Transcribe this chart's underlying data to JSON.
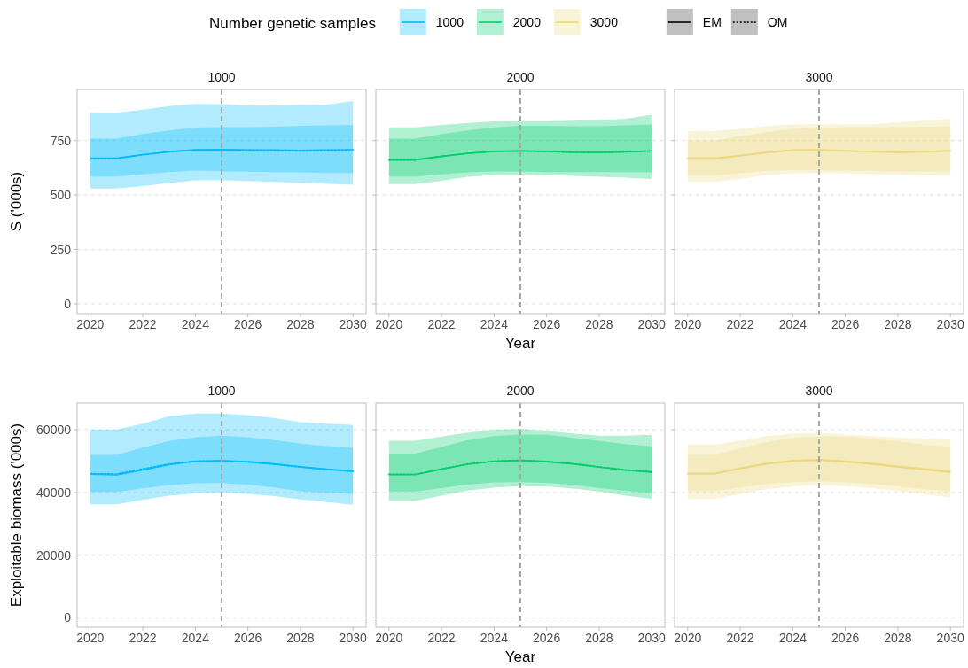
{
  "chart_data": [
    {
      "type": "line",
      "title": "1000",
      "ylabel": "S ('000s)",
      "legend_title": "Number genetic samples",
      "legend": "top",
      "grid": "y",
      "x": [
        2020,
        2021,
        2022,
        2023,
        2024,
        2025,
        2026,
        2027,
        2028,
        2029,
        2030
      ],
      "xlim": [
        2019.5,
        2030.5
      ],
      "xticks": [
        2020,
        2022,
        2024,
        2026,
        2028,
        2030
      ],
      "ylim": [
        -45,
        985
      ],
      "yticks": [
        0,
        250,
        500,
        750
      ],
      "ref_lines": [
        {
          "axis": "x",
          "value": 2025,
          "color": "#a6a6a6",
          "line_style": "dashed"
        }
      ],
      "series": [
        {
          "name": "EM",
          "color": "#00bcfc",
          "line_style": "solid",
          "values": [
            669,
            669,
            686,
            699,
            708,
            709,
            707,
            707,
            705,
            707,
            708
          ],
          "lower": [
            585,
            585,
            595,
            605,
            612,
            609,
            607,
            605,
            604,
            601,
            601
          ],
          "upper": [
            759,
            759,
            780,
            797,
            810,
            812,
            812,
            814,
            818,
            820,
            822
          ]
        },
        {
          "name": "OM",
          "color": "#00bcfc",
          "line_style": "dotted",
          "values": [
            667,
            667,
            685,
            698,
            707,
            708,
            706,
            705,
            702,
            704,
            706
          ],
          "lower": [
            530,
            530,
            541,
            554,
            568,
            568,
            565,
            561,
            557,
            551,
            547
          ],
          "upper": [
            878,
            878,
            892,
            909,
            919,
            918,
            912,
            912,
            915,
            916,
            932
          ]
        }
      ]
    },
    {
      "type": "line",
      "title": "2000",
      "xlabel": "Year",
      "grid": "y",
      "tick_labels": "x",
      "x": [
        2020,
        2021,
        2022,
        2023,
        2024,
        2025,
        2026,
        2027,
        2028,
        2029,
        2030
      ],
      "xlim": [
        2019.5,
        2030.5
      ],
      "xticks": [
        2020,
        2022,
        2024,
        2026,
        2028,
        2030
      ],
      "ylim": [
        -45,
        985
      ],
      "yticks": [
        0,
        250,
        500,
        750
      ],
      "ref_lines": [
        {
          "axis": "x",
          "value": 2025,
          "color": "#a6a6a6",
          "line_style": "dashed"
        }
      ],
      "series": [
        {
          "color": "#00cd6c",
          "line_style": "solid",
          "values": [
            662,
            662,
            678,
            692,
            701,
            703,
            701,
            697,
            696,
            699,
            703
          ],
          "lower": [
            585,
            585,
            595,
            604,
            608,
            608,
            605,
            605,
            605,
            605,
            605
          ],
          "upper": [
            759,
            759,
            780,
            797,
            811,
            818,
            818,
            816,
            816,
            820,
            824
          ]
        },
        {
          "color": "#00cd6c",
          "line_style": "dotted",
          "values": [
            661,
            661,
            677,
            691,
            700,
            702,
            700,
            696,
            695,
            698,
            702
          ],
          "lower": [
            550,
            550,
            566,
            584,
            592,
            595,
            592,
            588,
            584,
            580,
            574
          ],
          "upper": [
            811,
            811,
            822,
            831,
            838,
            839,
            839,
            841,
            845,
            851,
            869
          ]
        }
      ]
    },
    {
      "type": "line",
      "title": "3000",
      "grid": "y",
      "tick_labels": "x",
      "x": [
        2020,
        2021,
        2022,
        2023,
        2024,
        2025,
        2026,
        2027,
        2028,
        2029,
        2030
      ],
      "xlim": [
        2019.5,
        2030.5
      ],
      "xticks": [
        2020,
        2022,
        2024,
        2026,
        2028,
        2030
      ],
      "ylim": [
        -45,
        985
      ],
      "yticks": [
        0,
        250,
        500,
        750
      ],
      "ref_lines": [
        {
          "axis": "x",
          "value": 2025,
          "color": "#a6a6a6",
          "line_style": "dashed"
        }
      ],
      "series": [
        {
          "color": "#ebd77d",
          "line_style": "solid",
          "values": [
            669,
            669,
            682,
            696,
            707,
            708,
            704,
            700,
            697,
            700,
            704
          ],
          "lower": [
            591,
            591,
            601,
            611,
            615,
            614,
            612,
            611,
            609,
            608,
            608
          ],
          "upper": [
            750,
            750,
            770,
            790,
            804,
            810,
            811,
            811,
            812,
            814,
            815
          ]
        },
        {
          "color": "#ebd77d",
          "line_style": "dotted",
          "values": [
            666,
            666,
            680,
            694,
            705,
            706,
            702,
            698,
            695,
            698,
            702
          ],
          "lower": [
            561,
            561,
            574,
            592,
            599,
            601,
            599,
            596,
            593,
            591,
            588
          ],
          "upper": [
            795,
            795,
            804,
            818,
            824,
            826,
            824,
            824,
            834,
            842,
            851
          ]
        }
      ]
    },
    {
      "type": "line",
      "title": "1000",
      "ylabel": "Exploitable biomass ('000s)",
      "grid": "y",
      "x": [
        2020,
        2021,
        2022,
        2023,
        2024,
        2025,
        2026,
        2027,
        2028,
        2029,
        2030
      ],
      "xlim": [
        2019.5,
        2030.5
      ],
      "xticks": [
        2020,
        2022,
        2024,
        2026,
        2028,
        2030
      ],
      "ylim": [
        -3000,
        68500
      ],
      "yticks": [
        0,
        20000,
        40000,
        60000
      ],
      "ref_lines": [
        {
          "axis": "x",
          "value": 2025,
          "color": "#a6a6a6",
          "line_style": "dashed"
        }
      ],
      "series": [
        {
          "color": "#00bcfc",
          "line_style": "solid",
          "values": [
            45800,
            45600,
            47200,
            48900,
            49900,
            50100,
            49800,
            49100,
            48200,
            47400,
            46800
          ],
          "lower": [
            40200,
            40200,
            41300,
            42300,
            42900,
            43000,
            42500,
            41600,
            40400,
            39900,
            39500
          ],
          "upper": [
            52000,
            52000,
            54300,
            56400,
            57600,
            58100,
            57600,
            56700,
            55600,
            54800,
            54300
          ]
        },
        {
          "color": "#00bcfc",
          "line_style": "dotted",
          "values": [
            46000,
            45900,
            47500,
            49100,
            50000,
            50100,
            49700,
            49000,
            48100,
            47300,
            46700
          ],
          "lower": [
            36200,
            36200,
            37600,
            39000,
            39700,
            39900,
            39500,
            38800,
            37800,
            36900,
            36100
          ],
          "upper": [
            60100,
            60100,
            61900,
            64300,
            65200,
            65200,
            64700,
            63800,
            62400,
            61900,
            61600
          ]
        }
      ]
    },
    {
      "type": "line",
      "title": "2000",
      "xlabel": "Year",
      "grid": "y",
      "tick_labels": "x",
      "x": [
        2020,
        2021,
        2022,
        2023,
        2024,
        2025,
        2026,
        2027,
        2028,
        2029,
        2030
      ],
      "xlim": [
        2019.5,
        2030.5
      ],
      "xticks": [
        2020,
        2022,
        2024,
        2026,
        2028,
        2030
      ],
      "ylim": [
        -3000,
        68500
      ],
      "yticks": [
        0,
        20000,
        40000,
        60000
      ],
      "ref_lines": [
        {
          "axis": "x",
          "value": 2025,
          "color": "#a6a6a6",
          "line_style": "dashed"
        }
      ],
      "series": [
        {
          "color": "#00cd6c",
          "line_style": "solid",
          "values": [
            45700,
            45700,
            47400,
            49000,
            49900,
            50200,
            49800,
            49100,
            48100,
            47100,
            46500
          ],
          "lower": [
            40300,
            40300,
            41400,
            42500,
            43200,
            43300,
            43100,
            42400,
            41400,
            40500,
            39800
          ],
          "upper": [
            52400,
            52400,
            54500,
            56700,
            58000,
            58500,
            58400,
            57500,
            56400,
            55400,
            54700
          ]
        },
        {
          "color": "#00cd6c",
          "line_style": "dotted",
          "values": [
            45800,
            45800,
            47500,
            49100,
            50000,
            50300,
            49900,
            49200,
            48200,
            47200,
            46600
          ],
          "lower": [
            37300,
            37300,
            39000,
            40600,
            41500,
            42000,
            41900,
            41200,
            40300,
            39000,
            37900
          ],
          "upper": [
            56500,
            56500,
            57800,
            59100,
            60000,
            60300,
            59700,
            58800,
            58100,
            58100,
            58400
          ]
        }
      ]
    },
    {
      "type": "line",
      "title": "3000",
      "grid": "y",
      "tick_labels": "x",
      "x": [
        2020,
        2021,
        2022,
        2023,
        2024,
        2025,
        2026,
        2027,
        2028,
        2029,
        2030
      ],
      "xlim": [
        2019.5,
        2030.5
      ],
      "xticks": [
        2020,
        2022,
        2024,
        2026,
        2028,
        2030
      ],
      "ylim": [
        -3000,
        68500
      ],
      "yticks": [
        0,
        20000,
        40000,
        60000
      ],
      "ref_lines": [
        {
          "axis": "x",
          "value": 2025,
          "color": "#a6a6a6",
          "line_style": "dashed"
        }
      ],
      "series": [
        {
          "color": "#ebd77d",
          "line_style": "solid",
          "values": [
            45900,
            45900,
            47600,
            49100,
            50000,
            50300,
            49800,
            49100,
            48100,
            47300,
            46400
          ],
          "lower": [
            40400,
            40400,
            41600,
            42700,
            43300,
            43500,
            43300,
            42700,
            41900,
            41000,
            40300
          ],
          "upper": [
            52000,
            52000,
            54100,
            56100,
            57400,
            57900,
            57800,
            57200,
            56300,
            55300,
            54500
          ]
        },
        {
          "color": "#ebd77d",
          "line_style": "dotted",
          "values": [
            46100,
            46100,
            47800,
            49300,
            50200,
            50500,
            50000,
            49300,
            48400,
            47600,
            46700
          ],
          "lower": [
            37900,
            37900,
            39500,
            41000,
            41900,
            42200,
            42000,
            41400,
            40400,
            39400,
            38400
          ],
          "upper": [
            55300,
            55300,
            56500,
            58000,
            58800,
            59000,
            58500,
            58000,
            57500,
            57200,
            56900
          ]
        }
      ]
    }
  ]
}
